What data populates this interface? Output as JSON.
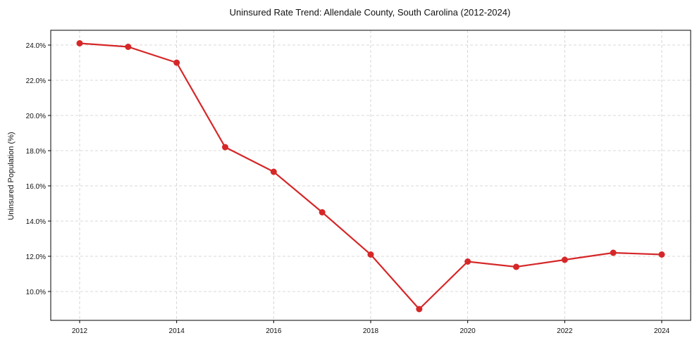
{
  "chart_data": {
    "type": "line",
    "title": "Uninsured Rate Trend: Allendale County, South Carolina (2012-2024)",
    "xlabel": "",
    "ylabel": "Uninsured Population (%)",
    "x": [
      2012,
      2013,
      2014,
      2015,
      2016,
      2017,
      2018,
      2019,
      2020,
      2021,
      2022,
      2023,
      2024
    ],
    "series": [
      {
        "name": "Uninsured Rate",
        "values": [
          24.1,
          23.9,
          23.0,
          18.2,
          16.8,
          14.5,
          12.1,
          9.0,
          11.7,
          11.4,
          11.8,
          12.2,
          12.1
        ],
        "color": "#d62728"
      }
    ],
    "xticks": [
      2012,
      2014,
      2016,
      2018,
      2020,
      2022,
      2024
    ],
    "yticks": [
      "10.0%",
      "12.0%",
      "14.0%",
      "16.0%",
      "18.0%",
      "20.0%",
      "22.0%",
      "24.0%"
    ],
    "ylim": [
      8.3,
      24.8
    ],
    "grid": true,
    "legend": null
  }
}
